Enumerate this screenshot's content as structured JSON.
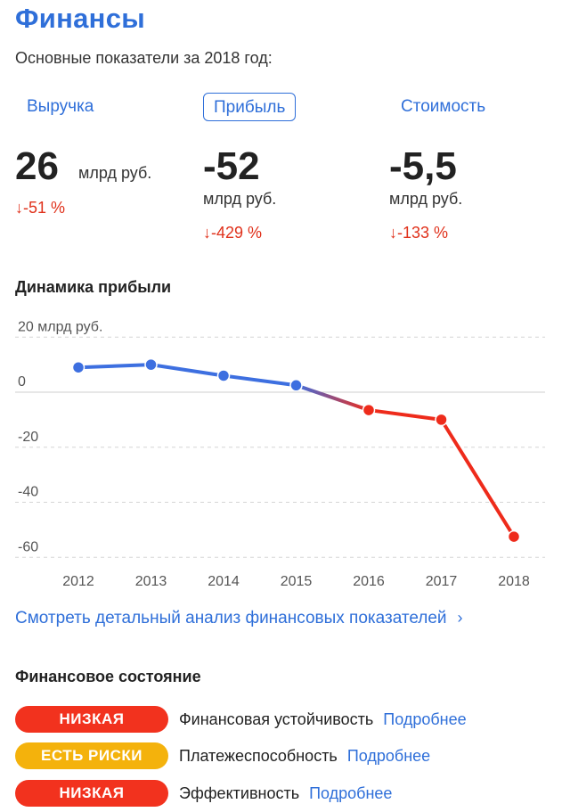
{
  "header": {
    "title": "Финансы",
    "subtitle": "Основные показатели за 2018 год:"
  },
  "tabs": [
    {
      "label": "Выручка",
      "active": false
    },
    {
      "label": "Прибыль",
      "active": true
    },
    {
      "label": "Стоимость",
      "active": false
    }
  ],
  "metrics": [
    {
      "value": "26",
      "unit": "млрд руб.",
      "change": "↓-51 %"
    },
    {
      "value": "-52",
      "unit": "млрд руб.",
      "change": "↓-429 %"
    },
    {
      "value": "-5,5",
      "unit": "млрд руб.",
      "change": "↓-133 %"
    }
  ],
  "chart_section": {
    "title": "Динамика прибыли"
  },
  "chart_data": {
    "type": "line",
    "title": "Динамика прибыли",
    "xlabel": "",
    "ylabel": "",
    "x": [
      "2012",
      "2013",
      "2014",
      "2015",
      "2016",
      "2017",
      "2018"
    ],
    "series": [
      {
        "values": [
          9,
          10,
          6,
          2.5,
          -6.5,
          -10,
          -52.5
        ]
      }
    ],
    "yticks": [
      "20 млрд руб.",
      "0",
      "-20",
      "-40",
      "-60"
    ],
    "ytick_values": [
      20,
      0,
      -20,
      -40,
      -60
    ],
    "ylim": [
      -60,
      20
    ],
    "grid": true,
    "colors": {
      "positive": "#3d6fe0",
      "negative": "#ee2b1b"
    }
  },
  "detail_link": {
    "label": "Смотреть детальный анализ финансовых показателей",
    "chevron": "›"
  },
  "status_section": {
    "title": "Финансовое состояние",
    "rows": [
      {
        "badge": "НИЗКАЯ",
        "badge_color": "#f2321e",
        "label": "Финансовая устойчивость",
        "link": "Подробнее"
      },
      {
        "badge": "ЕСТЬ РИСКИ",
        "badge_color": "#f4b20c",
        "label": "Платежеспособность",
        "link": "Подробнее"
      },
      {
        "badge": "НИЗКАЯ",
        "badge_color": "#f2321e",
        "label": "Эффективность",
        "link": "Подробнее"
      }
    ]
  }
}
